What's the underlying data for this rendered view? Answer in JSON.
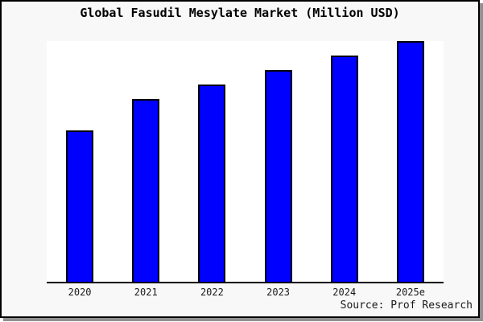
{
  "title": "Global Fasudil Mesylate Market (Million USD)",
  "source_credit": "Source: Prof Research",
  "colors": {
    "bar_fill": "#0000ff",
    "bar_border": "#000000",
    "frame_bg": "#f8f8f8",
    "frame_border": "#000000",
    "plot_bg": "#ffffff",
    "axis": "#000000",
    "shadow": "#909090",
    "label_text": "#1a1a1a",
    "title_text": "#000000"
  },
  "chart_data": {
    "type": "bar",
    "title": "Global Fasudil Mesylate Market (Million USD)",
    "categories": [
      "2020",
      "2021",
      "2022",
      "2023",
      "2024",
      "2025e"
    ],
    "values": [
      63,
      76,
      82,
      88,
      94,
      100
    ],
    "value_note": "No y-axis ticks are shown in the image; values are relative heights normalized so 2025e = 100.",
    "xlabel": "",
    "ylabel": "",
    "ylim": [
      0,
      100
    ],
    "grid": false,
    "legend": false,
    "y_axis_visible": false,
    "bar_color": "#0000ff",
    "annotations": [
      "Source: Prof Research"
    ]
  }
}
